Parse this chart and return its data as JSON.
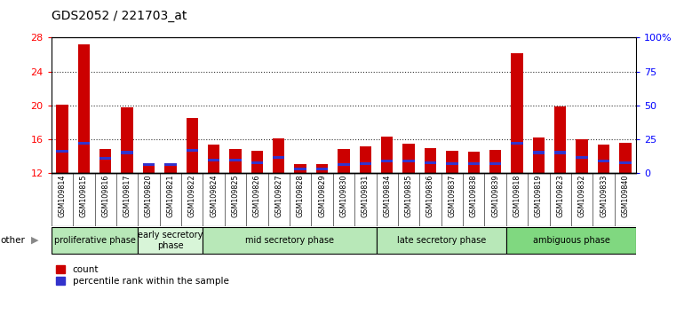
{
  "title": "GDS2052 / 221703_at",
  "samples": [
    "GSM109814",
    "GSM109815",
    "GSM109816",
    "GSM109817",
    "GSM109820",
    "GSM109821",
    "GSM109822",
    "GSM109824",
    "GSM109825",
    "GSM109826",
    "GSM109827",
    "GSM109828",
    "GSM109829",
    "GSM109830",
    "GSM109831",
    "GSM109834",
    "GSM109835",
    "GSM109836",
    "GSM109837",
    "GSM109838",
    "GSM109839",
    "GSM109818",
    "GSM109819",
    "GSM109823",
    "GSM109832",
    "GSM109833",
    "GSM109840"
  ],
  "count_values": [
    20.1,
    27.2,
    14.8,
    19.7,
    13.0,
    13.1,
    18.5,
    15.3,
    14.8,
    14.6,
    16.1,
    13.0,
    13.0,
    14.8,
    15.1,
    16.3,
    15.4,
    14.9,
    14.6,
    14.5,
    14.7,
    26.2,
    16.2,
    19.8,
    16.0,
    15.3,
    15.5
  ],
  "pct_bottom": [
    14.4,
    15.3,
    13.5,
    14.2,
    12.8,
    12.8,
    14.5,
    13.3,
    13.3,
    13.0,
    13.6,
    12.3,
    12.3,
    12.8,
    12.9,
    13.2,
    13.2,
    13.0,
    12.9,
    12.9,
    12.9,
    15.3,
    14.2,
    14.2,
    13.6,
    13.2,
    13.0
  ],
  "pct_height": [
    0.35,
    0.35,
    0.35,
    0.35,
    0.35,
    0.35,
    0.35,
    0.35,
    0.35,
    0.35,
    0.35,
    0.35,
    0.35,
    0.35,
    0.35,
    0.35,
    0.35,
    0.35,
    0.35,
    0.35,
    0.35,
    0.35,
    0.35,
    0.35,
    0.35,
    0.35,
    0.35
  ],
  "phases": [
    {
      "label": "proliferative phase",
      "start": 0,
      "end": 4,
      "color": "#b8e8b8"
    },
    {
      "label": "early secretory\nphase",
      "start": 4,
      "end": 7,
      "color": "#d8f5d8"
    },
    {
      "label": "mid secretory phase",
      "start": 7,
      "end": 15,
      "color": "#b8e8b8"
    },
    {
      "label": "late secretory phase",
      "start": 15,
      "end": 21,
      "color": "#b8e8b8"
    },
    {
      "label": "ambiguous phase",
      "start": 21,
      "end": 27,
      "color": "#80d880"
    }
  ],
  "ylim_left": [
    12,
    28
  ],
  "ylim_right": [
    0,
    100
  ],
  "yticks_left": [
    12,
    16,
    20,
    24,
    28
  ],
  "yticks_right": [
    0,
    25,
    50,
    75,
    100
  ],
  "bar_color": "#cc0000",
  "pct_color": "#3333cc",
  "baseline": 12,
  "bar_width": 0.55,
  "background_color": "#cccccc",
  "other_label": "other"
}
